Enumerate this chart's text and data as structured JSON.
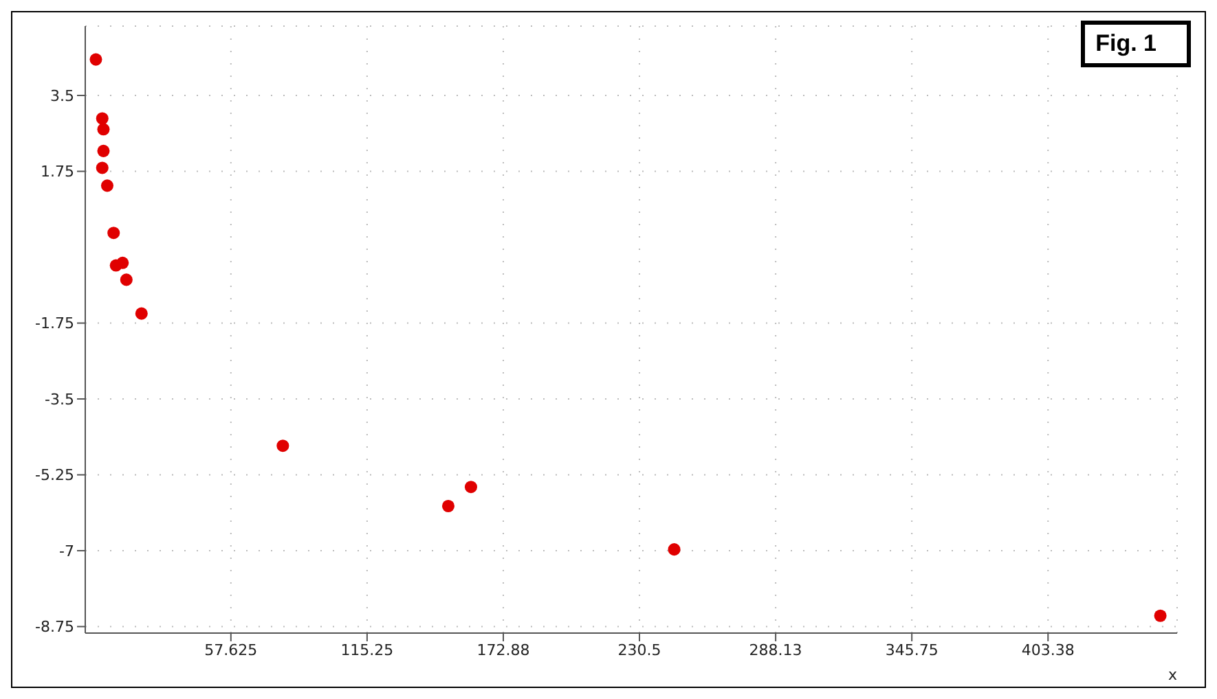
{
  "chart_data": {
    "type": "scatter",
    "xlabel": "x",
    "annotations": [
      "Fig. 1"
    ],
    "x": [
      0.5,
      3.2,
      3.7,
      3.7,
      3.2,
      5.3,
      8,
      9,
      11.8,
      13.4,
      19.8,
      79.6,
      149.6,
      159.2,
      245.2,
      450.9
    ],
    "series": [
      {
        "color": "#e00000",
        "values": [
          4.33,
          2.97,
          2.72,
          2.22,
          1.83,
          1.42,
          0.33,
          -0.42,
          -0.36,
          -0.75,
          -1.53,
          -4.58,
          -5.97,
          -5.53,
          -6.97,
          -8.5
        ]
      }
    ],
    "xlim": [
      -4,
      458
    ],
    "ylim": [
      -8.9,
      5.1
    ],
    "xticks": [
      57.625,
      115.25,
      172.88,
      230.5,
      288.13,
      345.75,
      403.38
    ],
    "yticks": [
      -8.75,
      -7,
      -5.25,
      -3.5,
      -1.75,
      1.75,
      3.5
    ],
    "grid": true,
    "marker": "circle"
  }
}
